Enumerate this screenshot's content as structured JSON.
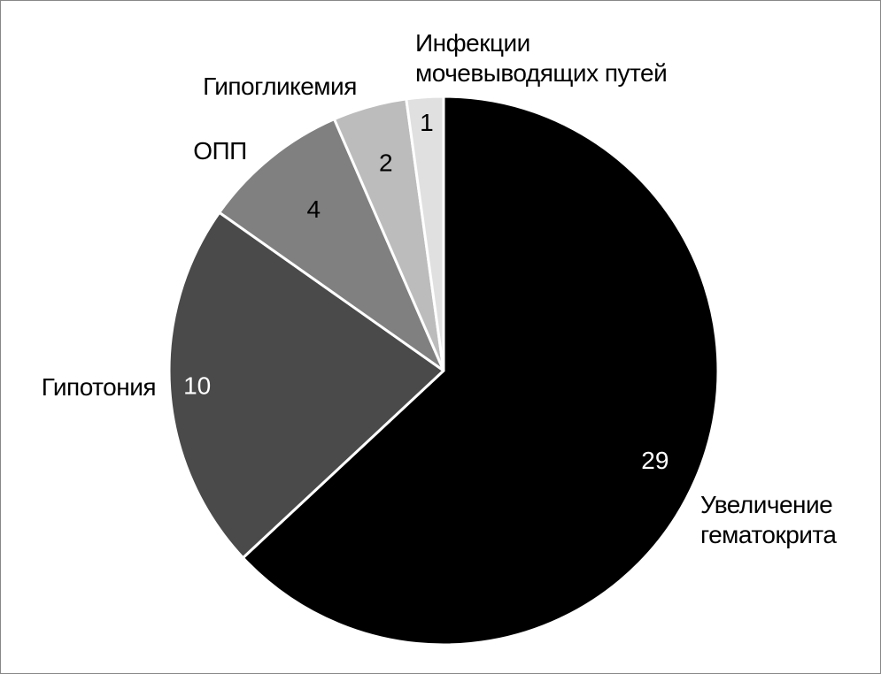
{
  "chart_data": {
    "type": "pie",
    "categories": [
      "Увеличение гематокрита",
      "Гипотония",
      "ОПП",
      "Гипогликемия",
      "Инфекции мочевыводящих путей"
    ],
    "values": [
      29,
      10,
      4,
      2,
      1
    ],
    "colors": [
      "#000000",
      "#4a4a4a",
      "#808080",
      "#bcbcbc",
      "#e0e0e0"
    ]
  }
}
